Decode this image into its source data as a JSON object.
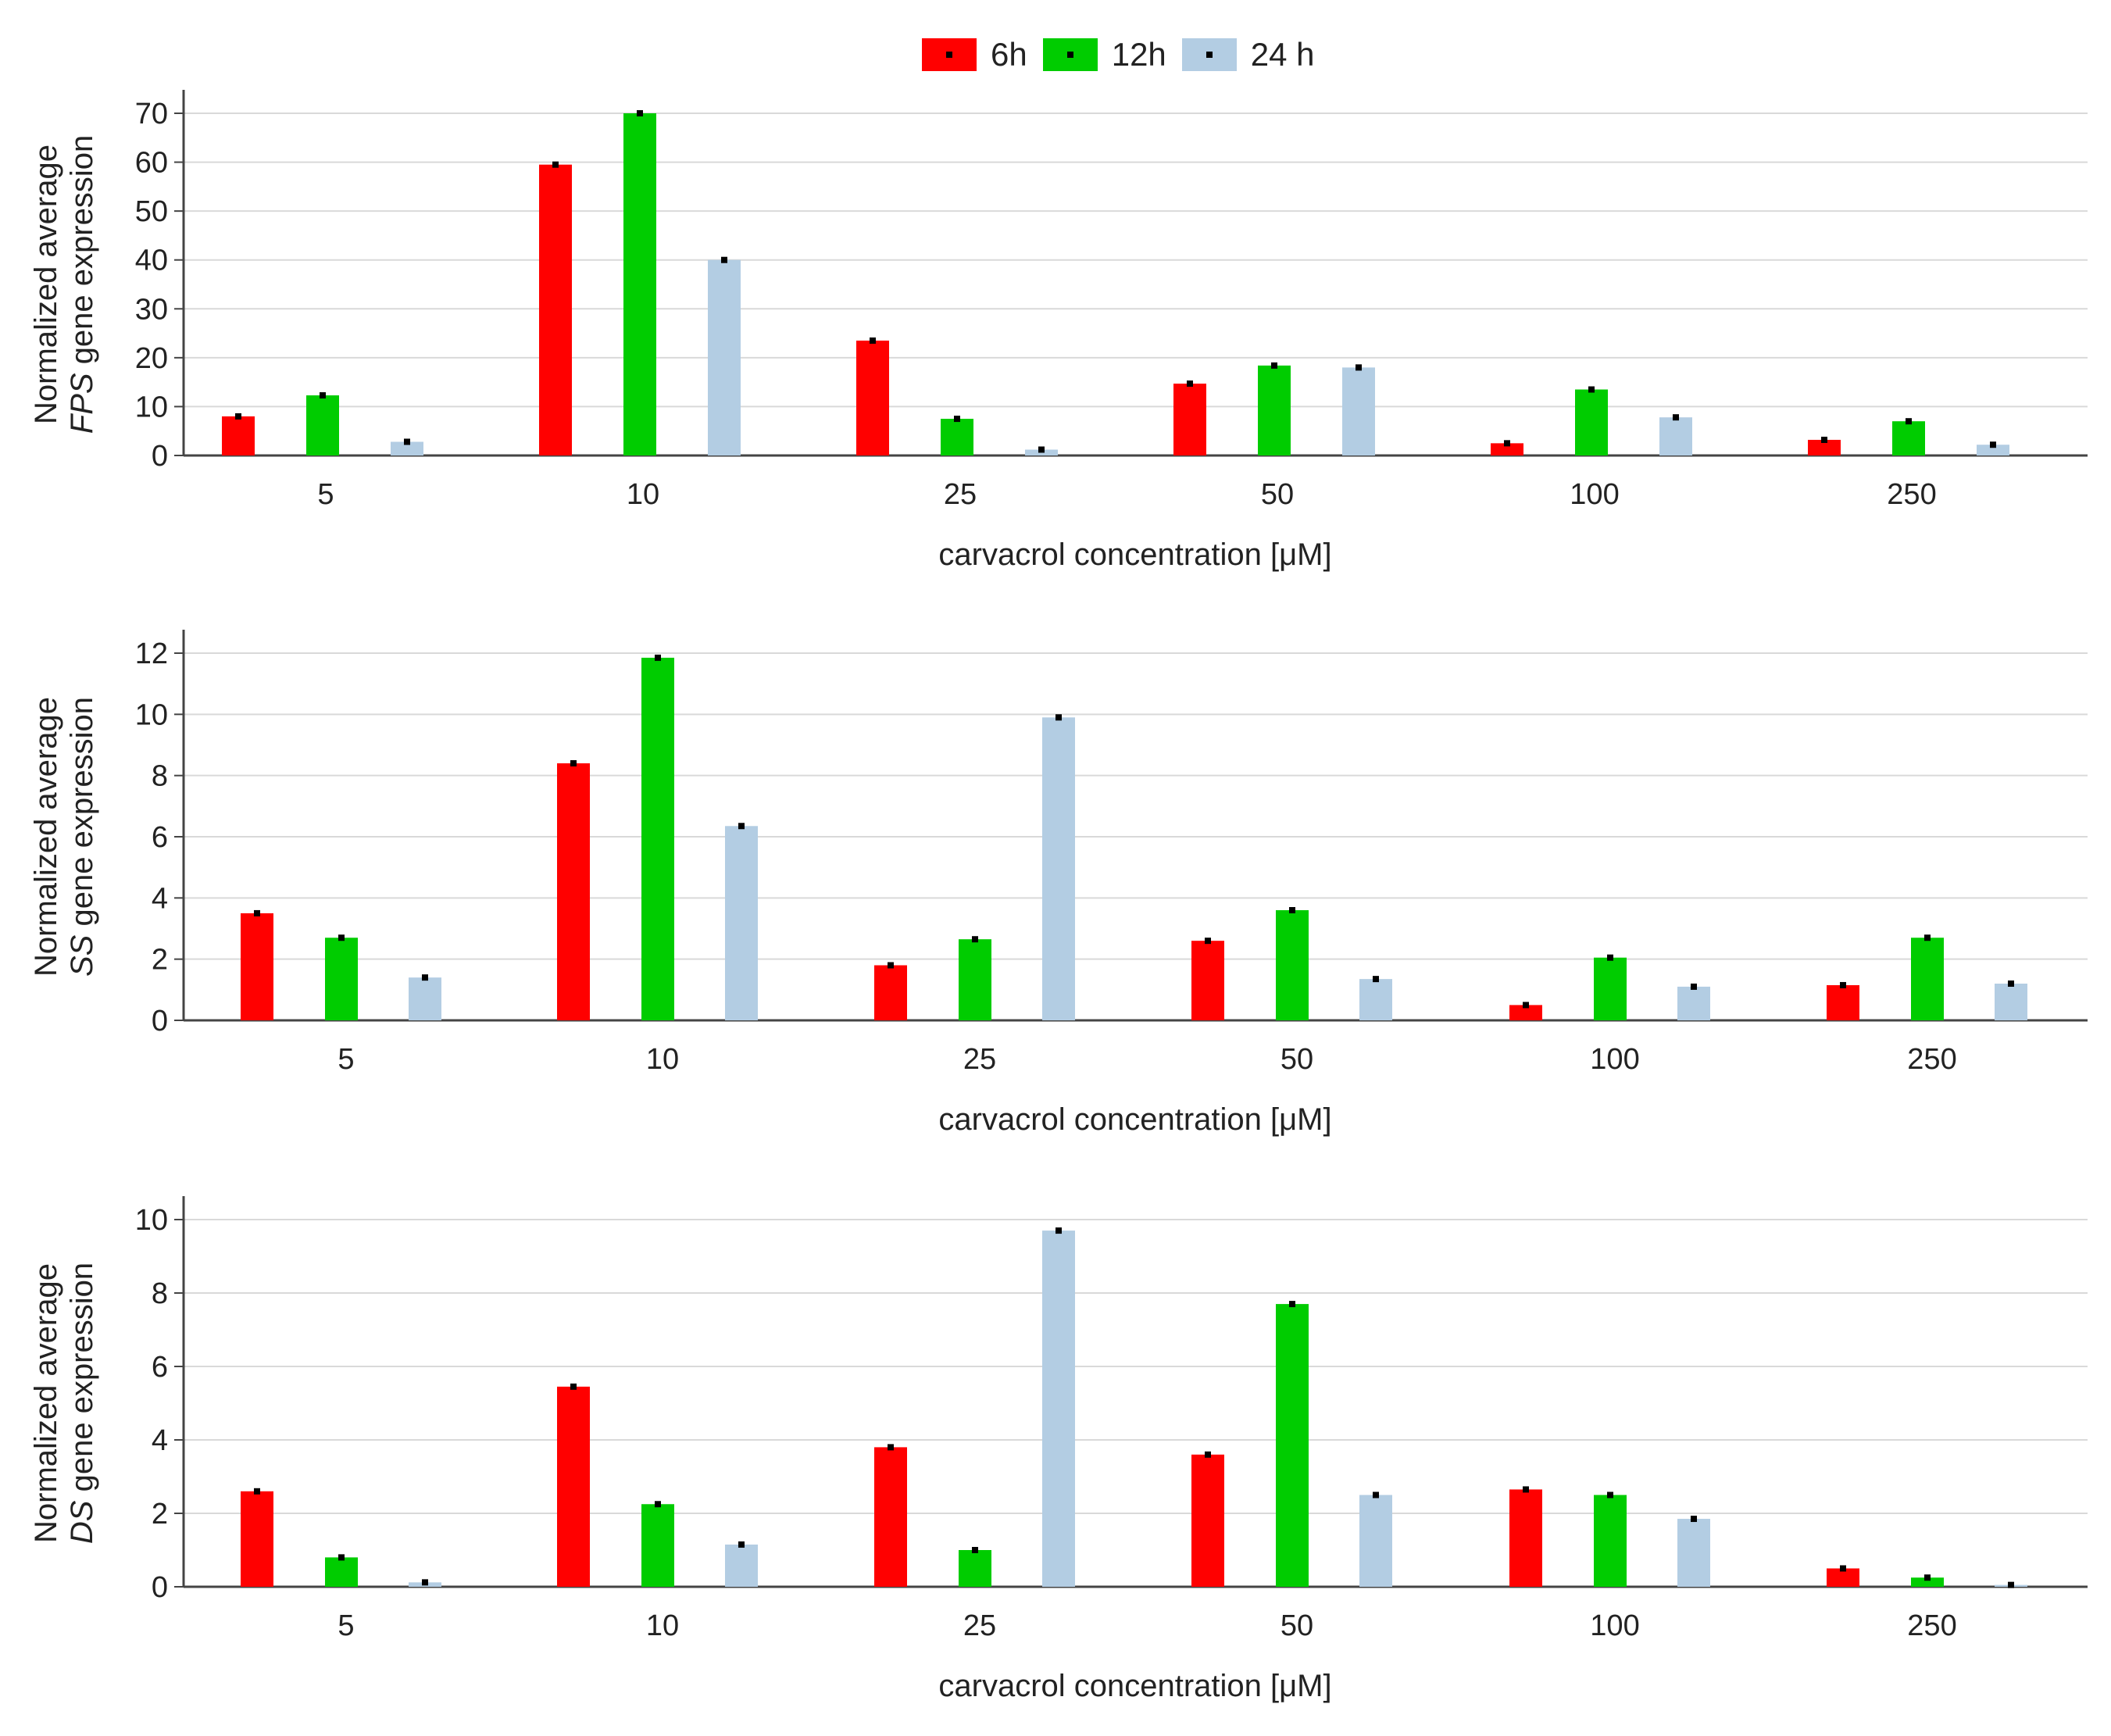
{
  "legend": {
    "series": [
      {
        "name": "6h",
        "color": "#ff0000"
      },
      {
        "name": "12h",
        "color": "#00cc00"
      },
      {
        "name": "24 h",
        "color": "#b3cde3"
      }
    ]
  },
  "chart_data": [
    {
      "type": "bar",
      "categories": [
        "5",
        "10",
        "25",
        "50",
        "100",
        "250"
      ],
      "series": [
        {
          "name": "6h",
          "values": [
            8,
            59.5,
            23.5,
            14.7,
            2.5,
            3.2
          ]
        },
        {
          "name": "12h",
          "values": [
            12.3,
            70,
            7.5,
            18.4,
            13.5,
            7
          ]
        },
        {
          "name": "24 h",
          "values": [
            2.8,
            40,
            1.2,
            18,
            7.8,
            2.2
          ]
        }
      ],
      "ylabel_line1": "Normalized average",
      "ylabel_gene": "FPS",
      "ylabel_rest": " gene expression",
      "xlabel": "carvacrol concentration [μM]",
      "ylim": [
        0,
        70
      ],
      "yticks": [
        0,
        10,
        20,
        30,
        40,
        50,
        60,
        70
      ],
      "grid": true
    },
    {
      "type": "bar",
      "categories": [
        "5",
        "10",
        "25",
        "50",
        "100",
        "250"
      ],
      "series": [
        {
          "name": "6h",
          "values": [
            3.5,
            8.4,
            1.8,
            2.6,
            0.5,
            1.15
          ]
        },
        {
          "name": "12h",
          "values": [
            2.7,
            11.85,
            2.65,
            3.6,
            2.05,
            2.7
          ]
        },
        {
          "name": "24 h",
          "values": [
            1.4,
            6.35,
            9.9,
            1.35,
            1.1,
            1.2
          ]
        }
      ],
      "ylabel_line1": "Normalized average",
      "ylabel_gene": "SS",
      "ylabel_rest": " gene expression",
      "xlabel": "carvacrol concentration [μM]",
      "ylim": [
        0,
        12
      ],
      "yticks": [
        0,
        2,
        4,
        6,
        8,
        10,
        12
      ],
      "grid": true
    },
    {
      "type": "bar",
      "categories": [
        "5",
        "10",
        "25",
        "50",
        "100",
        "250"
      ],
      "series": [
        {
          "name": "6h",
          "values": [
            2.6,
            5.45,
            3.8,
            3.6,
            2.65,
            0.5
          ]
        },
        {
          "name": "12h",
          "values": [
            0.8,
            2.25,
            1.0,
            7.7,
            2.5,
            0.25
          ]
        },
        {
          "name": "24 h",
          "values": [
            0.12,
            1.15,
            9.7,
            2.5,
            1.85,
            0.05
          ]
        }
      ],
      "ylabel_line1": "Normalized average",
      "ylabel_gene": "DS",
      "ylabel_rest": " gene expression",
      "xlabel": "carvacrol concentration [μM]",
      "ylim": [
        0,
        10
      ],
      "yticks": [
        0,
        2,
        4,
        6,
        8,
        10
      ],
      "grid": true
    }
  ]
}
